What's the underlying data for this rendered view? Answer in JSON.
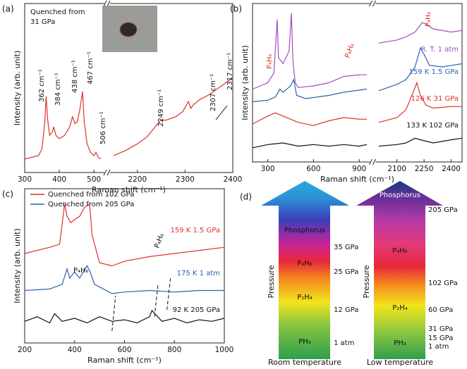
{
  "chart_data": [
    {
      "type": "line",
      "panel": "(a)",
      "xlabel": "Raman shift (cm⁻¹)",
      "ylabel": "Intensity (arb. unit)",
      "xlim": [
        300,
        2400
      ],
      "xbreak": [
        520,
        2150
      ],
      "xticks": [
        300,
        400,
        500,
        2200,
        2300,
        2400
      ],
      "ylim": [
        0,
        100
      ],
      "inset_text": [
        "Quenched from",
        "31 GPa"
      ],
      "annotations": [
        "362 cm⁻¹",
        "384 cm⁻¹",
        "438 cm⁻¹",
        "467 cm⁻¹",
        "506 cm⁻¹",
        "2249 cm⁻¹",
        "2307 cm⁻¹",
        "2317 cm⁻¹"
      ],
      "series": [
        {
          "color": "#e0312b",
          "x": [
            300,
            320,
            340,
            350,
            358,
            362,
            366,
            372,
            380,
            384,
            390,
            400,
            415,
            430,
            438,
            445,
            452,
            460,
            467,
            472,
            480,
            490,
            500,
            506,
            512,
            520,
            2150,
            2175,
            2200,
            2220,
            2240,
            2249,
            2260,
            2280,
            2295,
            2307,
            2312,
            2317,
            2330,
            2350,
            2370,
            2390,
            2400
          ],
          "values": [
            8,
            9,
            10,
            14,
            30,
            45,
            32,
            22,
            24,
            27,
            22,
            20,
            22,
            27,
            33,
            29,
            30,
            38,
            48,
            30,
            17,
            12,
            10,
            12,
            9,
            8,
            10,
            13,
            17,
            21,
            28,
            31,
            31,
            33,
            36,
            42,
            38,
            40,
            43,
            46,
            50,
            54,
            56
          ]
        }
      ]
    },
    {
      "type": "line",
      "panel": "(b)",
      "xlabel": "Raman shift (cm⁻¹)",
      "ylabel": "Intensity (arb. unit)",
      "xlim": [
        200,
        2460
      ],
      "xbreak": [
        950,
        2000
      ],
      "xticks": [
        300,
        600,
        900,
        2100,
        2250,
        2400
      ],
      "ylim": [
        0,
        100
      ],
      "annotations": [
        "P₄H₆",
        "P₄H₆",
        "P₄H₆"
      ],
      "series": [
        {
          "label": "R. T. 1 atm",
          "color": "#a24cc2",
          "x": [
            200,
            300,
            340,
            362,
            370,
            400,
            440,
            455,
            465,
            480,
            500,
            600,
            700,
            800,
            900,
            950,
            2000,
            2100,
            2150,
            2200,
            2240,
            2260,
            2300,
            2400,
            2460
          ],
          "values": [
            46,
            50,
            56,
            90,
            66,
            62,
            70,
            94,
            64,
            50,
            47,
            48,
            50,
            54,
            55,
            55,
            75,
            77,
            79,
            82,
            88,
            87,
            84,
            82,
            83
          ]
        },
        {
          "label": "159 K 1.5 GPa",
          "color": "#2a62b0",
          "x": [
            200,
            300,
            350,
            380,
            400,
            450,
            470,
            490,
            550,
            700,
            800,
            950,
            2000,
            2100,
            2150,
            2200,
            2230,
            2250,
            2280,
            2350,
            2460
          ],
          "values": [
            38,
            39,
            41,
            46,
            44,
            48,
            52,
            42,
            40,
            42,
            44,
            46,
            45,
            49,
            52,
            60,
            72,
            68,
            61,
            60,
            62
          ]
        },
        {
          "label": "126 K 31 GPa",
          "color": "#e0312b",
          "x": [
            200,
            300,
            350,
            400,
            450,
            500,
            600,
            700,
            800,
            900,
            950,
            2000,
            2100,
            2150,
            2190,
            2210,
            2230,
            2260,
            2300,
            2400,
            2460
          ],
          "values": [
            24,
            29,
            31,
            29,
            27,
            25,
            23,
            26,
            28,
            27,
            27,
            25,
            28,
            33,
            44,
            50,
            42,
            36,
            34,
            35,
            35
          ]
        },
        {
          "label": "133 K 102 GPa",
          "color": "#111111",
          "x": [
            200,
            300,
            400,
            500,
            600,
            700,
            800,
            900,
            950,
            2000,
            2100,
            2150,
            2200,
            2230,
            2300,
            2400,
            2460
          ],
          "values": [
            9,
            11,
            12,
            10,
            11,
            10,
            11,
            10,
            11,
            10,
            11,
            12,
            15,
            14,
            12,
            14,
            15
          ]
        }
      ]
    },
    {
      "type": "line",
      "panel": "(c)",
      "xlabel": "Raman shift (cm⁻¹)",
      "ylabel": "Intensity (arb. unit)",
      "xlim": [
        200,
        1000
      ],
      "xticks": [
        200,
        400,
        600,
        800,
        1000
      ],
      "ylim": [
        0,
        100
      ],
      "annotations": [
        "P₄H₆",
        "P₄H₆"
      ],
      "series": [
        {
          "name": "Quenched from 102 GPa",
          "label": "159 K 1.5 GPa",
          "color": "#e0312b",
          "x": [
            200,
            300,
            340,
            360,
            370,
            385,
            400,
            420,
            440,
            460,
            470,
            500,
            550,
            600,
            700,
            800,
            900,
            1000
          ],
          "values": [
            58,
            62,
            64,
            90,
            82,
            78,
            80,
            82,
            88,
            90,
            70,
            52,
            50,
            53,
            56,
            58,
            60,
            62
          ]
        },
        {
          "name": "Quenched from 205 GPa",
          "label": "175 K 1 atm",
          "color": "#2a62b0",
          "x": [
            200,
            300,
            350,
            370,
            380,
            400,
            420,
            450,
            460,
            480,
            550,
            600,
            700,
            800,
            900,
            1000
          ],
          "values": [
            34,
            35,
            38,
            48,
            42,
            46,
            42,
            50,
            47,
            38,
            32,
            33,
            34,
            33,
            34,
            34
          ]
        },
        {
          "label": "92 K 205 GPa",
          "color": "#111111",
          "x": [
            200,
            250,
            300,
            320,
            350,
            400,
            450,
            500,
            550,
            600,
            650,
            700,
            710,
            750,
            800,
            850,
            900,
            950,
            1000
          ],
          "values": [
            14,
            17,
            13,
            19,
            14,
            16,
            13,
            17,
            14,
            15,
            13,
            17,
            21,
            14,
            16,
            13,
            15,
            14,
            16
          ]
        }
      ]
    }
  ],
  "diagram": {
    "panel": "(d)",
    "axis_label": "Pressure",
    "left": {
      "caption": "Room temperature",
      "phases": [
        "Phosphorus",
        "P₄H₆",
        "P₂H₄",
        "PH₃"
      ],
      "pressures": [
        "35 GPa",
        "25 GPa",
        "12 GPa",
        "1 atm"
      ]
    },
    "right": {
      "caption": "Low temperature",
      "phases": [
        "Phosphorus",
        "P₄H₆",
        "P₂H₄",
        "PH₃"
      ],
      "pressures": [
        "205 GPa",
        "102 GPa",
        "60 GPa",
        "31 GPa",
        "15 GPa",
        "1 atm"
      ]
    }
  }
}
